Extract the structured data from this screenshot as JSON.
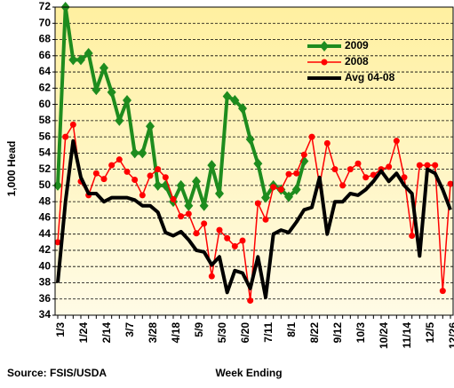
{
  "chart_data": {
    "type": "line",
    "y_label": "1,000 Head",
    "x_label": "Week Ending",
    "source": "Source:  FSIS/USDA",
    "categories": [
      "1/3",
      null,
      null,
      "1/24",
      null,
      null,
      "2/14",
      null,
      null,
      "3/7",
      null,
      null,
      "3/28",
      null,
      null,
      "4/18",
      null,
      null,
      "5/9",
      null,
      null,
      "5/30",
      null,
      null,
      "6/20",
      null,
      null,
      "7/11",
      null,
      null,
      "8/1",
      null,
      null,
      "8/22",
      null,
      null,
      "9/12",
      null,
      null,
      "10/3",
      null,
      null,
      "10/24",
      null,
      null,
      "11/14",
      null,
      null,
      "12/5",
      null,
      null,
      "12/26"
    ],
    "ylim": [
      34,
      72
    ],
    "yticks": [
      34,
      36,
      38,
      40,
      42,
      44,
      46,
      48,
      50,
      52,
      54,
      56,
      58,
      60,
      62,
      64,
      66,
      68,
      70,
      72
    ],
    "grid": true,
    "legend": "upper right",
    "series": [
      {
        "name": "2009",
        "color": "#1e8c1e",
        "marker": "diamond",
        "values": [
          50,
          72,
          65.5,
          65.5,
          66.3,
          61.8,
          64.5,
          61.5,
          58,
          60.5,
          54,
          54,
          57.3,
          50,
          50,
          48,
          50,
          47.5,
          50.5,
          47.5,
          52.5,
          49,
          61,
          60.5,
          59.5,
          55.7,
          52.7,
          48.5,
          50,
          49.5,
          48.6,
          49.5,
          53,
          null,
          null,
          null,
          null,
          null,
          null,
          null,
          null,
          null,
          null,
          null,
          null,
          null,
          null,
          null,
          null,
          null,
          null,
          null
        ]
      },
      {
        "name": "2008",
        "color": "#ff0000",
        "marker": "circle",
        "values": [
          43,
          56,
          57.5,
          50.5,
          48.8,
          51.5,
          50.8,
          52.5,
          53.2,
          51.7,
          50.7,
          48.8,
          51.2,
          52,
          51,
          48.3,
          46.2,
          46.5,
          44.1,
          45.3,
          38.8,
          44.5,
          43.5,
          42.5,
          43.2,
          35.8,
          47.8,
          45.8,
          49.8,
          49.5,
          51.4,
          51.5,
          53.8,
          56,
          50,
          55.2,
          52,
          50,
          52,
          52.7,
          51,
          51.3,
          52,
          52.3,
          55.5,
          51,
          43.8,
          52.5,
          52.5,
          52.5,
          37,
          50.2
        ]
      },
      {
        "name": "Avg 04-08",
        "color": "#000000",
        "marker": "none",
        "values": [
          38,
          48,
          55.5,
          51,
          49,
          49,
          48,
          48.5,
          48.5,
          48.5,
          48.2,
          47.5,
          47.5,
          46.7,
          44.2,
          43.8,
          44.3,
          43.3,
          42,
          41.8,
          40.2,
          41.2,
          36.8,
          39.5,
          39.2,
          37.3,
          41.2,
          36.2,
          44,
          44.5,
          44.2,
          45.5,
          47,
          47.3,
          51,
          44,
          48,
          48,
          49,
          48.8,
          49.5,
          50.5,
          51.8,
          50.5,
          51.5,
          50,
          49,
          41.3,
          52,
          51.5,
          49.5,
          47
        ]
      }
    ]
  }
}
